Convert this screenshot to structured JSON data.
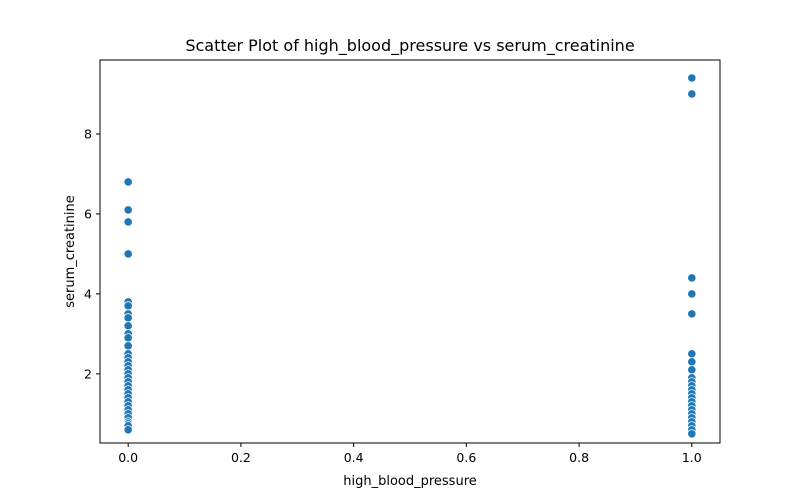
{
  "chart_data": {
    "type": "scatter",
    "title": "Scatter Plot of high_blood_pressure vs serum_creatinine",
    "xlabel": "high_blood_pressure",
    "ylabel": "serum_creatinine",
    "xlim": [
      -0.05,
      1.05
    ],
    "ylim": [
      0.27,
      9.85
    ],
    "xticks": [
      0.0,
      0.2,
      0.4,
      0.6,
      0.8,
      1.0
    ],
    "xtick_labels": [
      "0.0",
      "0.2",
      "0.4",
      "0.6",
      "0.8",
      "1.0"
    ],
    "yticks": [
      2,
      4,
      6,
      8
    ],
    "ytick_labels": [
      "2",
      "4",
      "6",
      "8"
    ],
    "grid": false,
    "color": "#1f77b4",
    "points": [
      {
        "x": 0,
        "y": 6.8
      },
      {
        "x": 0,
        "y": 6.1
      },
      {
        "x": 0,
        "y": 5.8
      },
      {
        "x": 0,
        "y": 5.0
      },
      {
        "x": 0,
        "y": 3.8
      },
      {
        "x": 0,
        "y": 3.7
      },
      {
        "x": 0,
        "y": 3.5
      },
      {
        "x": 0,
        "y": 3.4
      },
      {
        "x": 0,
        "y": 3.2
      },
      {
        "x": 0,
        "y": 3.0
      },
      {
        "x": 0,
        "y": 2.9
      },
      {
        "x": 0,
        "y": 2.7
      },
      {
        "x": 0,
        "y": 2.5
      },
      {
        "x": 0,
        "y": 2.4
      },
      {
        "x": 0,
        "y": 2.3
      },
      {
        "x": 0,
        "y": 2.2
      },
      {
        "x": 0,
        "y": 2.1
      },
      {
        "x": 0,
        "y": 2.0
      },
      {
        "x": 0,
        "y": 1.9
      },
      {
        "x": 0,
        "y": 1.8
      },
      {
        "x": 0,
        "y": 1.7
      },
      {
        "x": 0,
        "y": 1.6
      },
      {
        "x": 0,
        "y": 1.5
      },
      {
        "x": 0,
        "y": 1.4
      },
      {
        "x": 0,
        "y": 1.3
      },
      {
        "x": 0,
        "y": 1.2
      },
      {
        "x": 0,
        "y": 1.1
      },
      {
        "x": 0,
        "y": 1.0
      },
      {
        "x": 0,
        "y": 0.9
      },
      {
        "x": 0,
        "y": 0.8
      },
      {
        "x": 0,
        "y": 0.75
      },
      {
        "x": 0,
        "y": 0.7
      },
      {
        "x": 0,
        "y": 0.6
      },
      {
        "x": 1,
        "y": 9.4
      },
      {
        "x": 1,
        "y": 9.0
      },
      {
        "x": 1,
        "y": 4.4
      },
      {
        "x": 1,
        "y": 4.0
      },
      {
        "x": 1,
        "y": 3.5
      },
      {
        "x": 1,
        "y": 2.5
      },
      {
        "x": 1,
        "y": 2.3
      },
      {
        "x": 1,
        "y": 2.1
      },
      {
        "x": 1,
        "y": 1.9
      },
      {
        "x": 1,
        "y": 1.8
      },
      {
        "x": 1,
        "y": 1.7
      },
      {
        "x": 1,
        "y": 1.6
      },
      {
        "x": 1,
        "y": 1.5
      },
      {
        "x": 1,
        "y": 1.4
      },
      {
        "x": 1,
        "y": 1.3
      },
      {
        "x": 1,
        "y": 1.2
      },
      {
        "x": 1,
        "y": 1.1
      },
      {
        "x": 1,
        "y": 1.0
      },
      {
        "x": 1,
        "y": 0.9
      },
      {
        "x": 1,
        "y": 0.8
      },
      {
        "x": 1,
        "y": 0.7
      },
      {
        "x": 1,
        "y": 0.6
      },
      {
        "x": 1,
        "y": 0.5
      }
    ]
  }
}
